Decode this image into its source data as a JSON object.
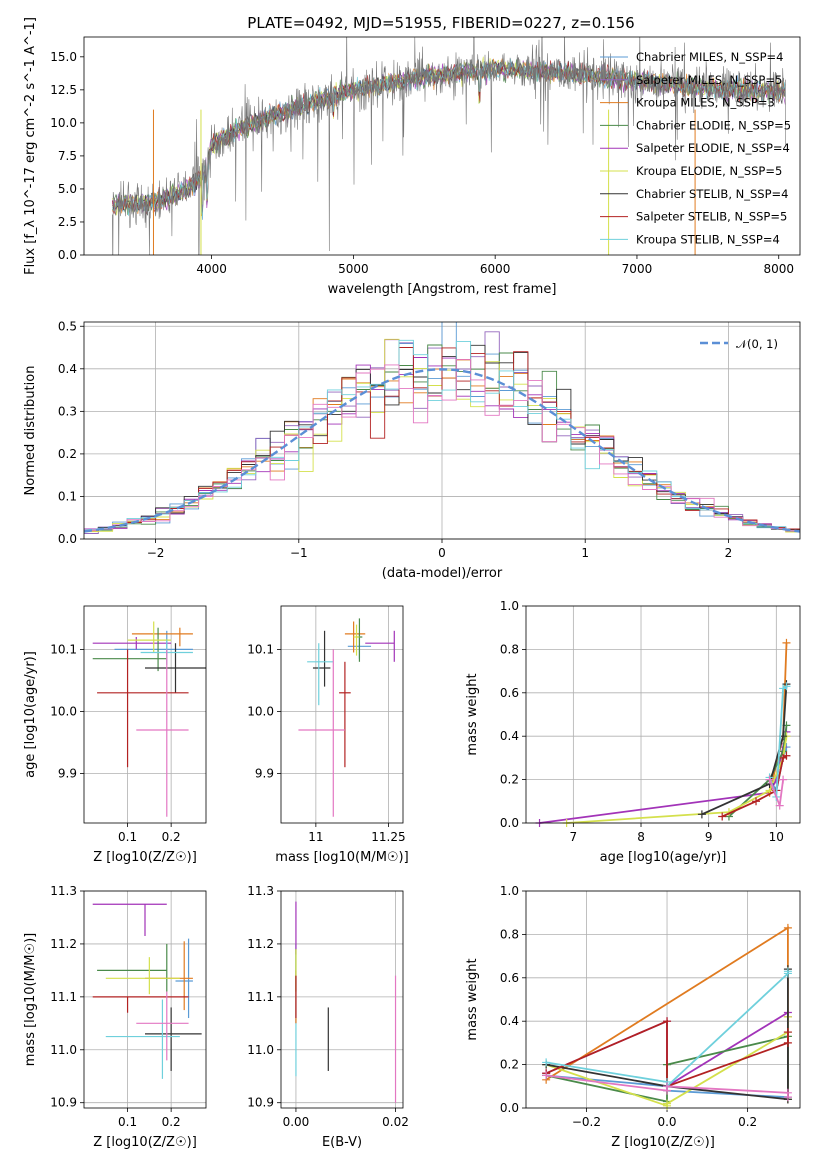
{
  "page_title": "PLATE=0492, MJD=51955, FIBERID=0227, z=0.156",
  "chart_data": [
    {
      "id": "spectrum",
      "type": "line",
      "xlabel": "wavelength [Angstrom, rest frame]",
      "ylabel": "Flux [f_λ 10^-17 erg cm^-2 s^-1 A^-1]",
      "xlim": [
        3100,
        8150
      ],
      "ylim": [
        0,
        16.5
      ],
      "xticks": [
        4000,
        5000,
        6000,
        7000,
        8000
      ],
      "yticks": [
        0.0,
        2.5,
        5.0,
        7.5,
        10.0,
        12.5,
        15.0
      ],
      "grid": false,
      "legend_position": "right",
      "data_color": "#777777",
      "continuum": [
        [
          3300,
          3.8
        ],
        [
          3550,
          3.9
        ],
        [
          3650,
          4.2
        ],
        [
          3800,
          4.8
        ],
        [
          3950,
          6.0
        ],
        [
          4000,
          8.3
        ],
        [
          4200,
          9.6
        ],
        [
          4500,
          10.8
        ],
        [
          4800,
          11.8
        ],
        [
          5000,
          12.5
        ],
        [
          5500,
          13.5
        ],
        [
          6000,
          14.1
        ],
        [
          6500,
          13.8
        ],
        [
          7000,
          13.2
        ],
        [
          7500,
          12.6
        ],
        [
          8000,
          12.4
        ],
        [
          8050,
          12.3
        ]
      ],
      "models": [
        {
          "name": "Chabrier MILES, N_SSP=4",
          "color": "#5b9bd5"
        },
        {
          "name": "Salpeter MILES, N_SSP=5",
          "color": "#9467bd"
        },
        {
          "name": "Kroupa MILES, N_SSP=3",
          "color": "#e07b20"
        },
        {
          "name": "Chabrier ELODIE, N_SSP=5",
          "color": "#4a8a4a"
        },
        {
          "name": "Salpeter ELODIE, N_SSP=4",
          "color": "#a233b8"
        },
        {
          "name": "Kroupa ELODIE, N_SSP=5",
          "color": "#d4e04c"
        },
        {
          "name": "Chabrier STELIB, N_SSP=4",
          "color": "#333333"
        },
        {
          "name": "Salpeter STELIB, N_SSP=5",
          "color": "#b22222"
        },
        {
          "name": "Kroupa STELIB, N_SSP=4",
          "color": "#6fd0dc"
        }
      ]
    },
    {
      "id": "residuals",
      "type": "line",
      "xlabel": "(data-model)/error",
      "ylabel": "Normed distribution",
      "xlim": [
        -2.5,
        2.5
      ],
      "ylim": [
        0,
        0.51
      ],
      "xticks": [
        -2,
        -1,
        0,
        1,
        2
      ],
      "yticks": [
        0.0,
        0.1,
        0.2,
        0.3,
        0.4,
        0.5
      ],
      "grid": true,
      "legend_position": "top-right",
      "reference": {
        "name": "𝒩(0, 1)",
        "color": "#5b8fd6",
        "mean": 0,
        "sigma": 1
      },
      "bin_width": 0.1,
      "histogram_colors": [
        "#5b9bd5",
        "#9467bd",
        "#e07b20",
        "#4a8a4a",
        "#a233b8",
        "#d4e04c",
        "#333333",
        "#b22222",
        "#6fd0dc",
        "#e377c2"
      ]
    },
    {
      "id": "age_vs_Z",
      "type": "scatter",
      "xlabel": "Z [log10(Z/Z☉)]",
      "ylabel": "age  [log10(age/yr)]",
      "xlim": [
        0.0,
        0.28
      ],
      "ylim": [
        9.82,
        10.17
      ],
      "xticks": [
        0.1,
        0.2
      ],
      "yticks": [
        9.9,
        10.0,
        10.1
      ],
      "grid": true,
      "points": [
        {
          "x": 0.19,
          "y": 10.1,
          "xerr": [
            0.12,
            0.06
          ],
          "yerr": [
            0.01,
            0.03
          ],
          "color": "#5b9bd5"
        },
        {
          "x": 0.12,
          "y": 10.11,
          "xerr": [
            0.1,
            0.08
          ],
          "yerr": [
            0.01,
            0.01
          ],
          "color": "#a233b8"
        },
        {
          "x": 0.22,
          "y": 10.125,
          "xerr": [
            0.11,
            0.03
          ],
          "yerr": [
            0.02,
            0.01
          ],
          "color": "#e07b20"
        },
        {
          "x": 0.17,
          "y": 10.085,
          "xerr": [
            0.15,
            0.02
          ],
          "yerr": [
            0.02,
            0.05
          ],
          "color": "#4a8a4a"
        },
        {
          "x": 0.16,
          "y": 10.115,
          "xerr": [
            0.06,
            0.04
          ],
          "yerr": [
            0.02,
            0.03
          ],
          "color": "#d4e04c"
        },
        {
          "x": 0.21,
          "y": 10.07,
          "xerr": [
            0.07,
            0.07
          ],
          "yerr": [
            0.04,
            0.04
          ],
          "color": "#333333"
        },
        {
          "x": 0.1,
          "y": 10.03,
          "xerr": [
            0.07,
            0.14
          ],
          "yerr": [
            0.12,
            0.07
          ],
          "color": "#b22222"
        },
        {
          "x": 0.19,
          "y": 10.095,
          "xerr": [
            0.06,
            0.06
          ],
          "yerr": [
            0.02,
            0.02
          ],
          "color": "#6fd0dc"
        },
        {
          "x": 0.19,
          "y": 9.97,
          "xerr": [
            0.07,
            0.05
          ],
          "yerr": [
            0.14,
            0.13
          ],
          "color": "#e377c2"
        }
      ]
    },
    {
      "id": "age_vs_mass",
      "type": "scatter",
      "xlabel": "mass [log10(M/M☉)]",
      "ylabel": "",
      "xlim": [
        10.88,
        11.3
      ],
      "ylim": [
        9.82,
        10.17
      ],
      "xticks": [
        11.0,
        11.25
      ],
      "yticks": [
        9.9,
        10.0,
        10.1
      ],
      "grid": true,
      "points": [
        {
          "x": 11.15,
          "y": 10.105,
          "xerr": [
            0.04,
            0.04
          ],
          "yerr": [
            0.02,
            0.02
          ],
          "color": "#5b9bd5"
        },
        {
          "x": 11.27,
          "y": 10.11,
          "xerr": [
            0.1,
            0.0
          ],
          "yerr": [
            0.03,
            0.02
          ],
          "color": "#a233b8"
        },
        {
          "x": 11.13,
          "y": 10.125,
          "xerr": [
            0.03,
            0.04
          ],
          "yerr": [
            0.03,
            0.02
          ],
          "color": "#e07b20"
        },
        {
          "x": 11.15,
          "y": 10.12,
          "xerr": [
            0.01,
            0.01
          ],
          "yerr": [
            0.04,
            0.03
          ],
          "color": "#4a8a4a"
        },
        {
          "x": 11.14,
          "y": 10.12,
          "xerr": [
            0.01,
            0.01
          ],
          "yerr": [
            0.03,
            0.02
          ],
          "color": "#d4e04c"
        },
        {
          "x": 11.03,
          "y": 10.07,
          "xerr": [
            0.04,
            0.02
          ],
          "yerr": [
            0.03,
            0.06
          ],
          "color": "#333333"
        },
        {
          "x": 11.1,
          "y": 10.03,
          "xerr": [
            0.02,
            0.02
          ],
          "yerr": [
            0.12,
            0.05
          ],
          "color": "#b22222"
        },
        {
          "x": 11.01,
          "y": 10.08,
          "xerr": [
            0.04,
            0.05
          ],
          "yerr": [
            0.07,
            0.03
          ],
          "color": "#6fd0dc"
        },
        {
          "x": 11.06,
          "y": 9.97,
          "xerr": [
            0.12,
            0.04
          ],
          "yerr": [
            0.14,
            0.13
          ],
          "color": "#e377c2"
        }
      ]
    },
    {
      "id": "weight_vs_age",
      "type": "line",
      "xlabel": "age  [log10(age/yr)]",
      "ylabel": "mass weight",
      "xlim": [
        6.3,
        10.35
      ],
      "ylim": [
        0,
        1.0
      ],
      "xticks": [
        7,
        8,
        9,
        10
      ],
      "yticks": [
        0.0,
        0.2,
        0.4,
        0.6,
        0.8,
        1.0
      ],
      "grid": true,
      "series": [
        {
          "color": "#5b9bd5",
          "x": [
            9.9,
            10.0,
            10.1,
            10.15
          ],
          "y": [
            0.2,
            0.15,
            0.3,
            0.35
          ]
        },
        {
          "color": "#a233b8",
          "x": [
            6.5,
            9.9,
            10.0,
            10.1,
            10.15
          ],
          "y": [
            0.0,
            0.14,
            0.2,
            0.35,
            0.42
          ]
        },
        {
          "color": "#e07b20",
          "x": [
            9.9,
            10.1,
            10.15
          ],
          "y": [
            0.14,
            0.4,
            0.83
          ]
        },
        {
          "color": "#4a8a4a",
          "x": [
            9.3,
            9.9,
            10.1,
            10.15
          ],
          "y": [
            0.03,
            0.2,
            0.33,
            0.45
          ]
        },
        {
          "color": "#d4e04c",
          "x": [
            6.9,
            9.3,
            9.9,
            10.1,
            10.15
          ],
          "y": [
            0.0,
            0.05,
            0.15,
            0.3,
            0.4
          ]
        },
        {
          "color": "#333333",
          "x": [
            8.9,
            9.9,
            10.1,
            10.15
          ],
          "y": [
            0.04,
            0.18,
            0.4,
            0.64
          ]
        },
        {
          "color": "#b22222",
          "x": [
            9.2,
            9.7,
            10.0,
            10.1,
            10.15
          ],
          "y": [
            0.03,
            0.1,
            0.15,
            0.3,
            0.31
          ]
        },
        {
          "color": "#6fd0dc",
          "x": [
            9.9,
            10.0,
            10.1,
            10.15
          ],
          "y": [
            0.21,
            0.12,
            0.62,
            0.63
          ]
        },
        {
          "color": "#e377c2",
          "x": [
            9.9,
            10.05,
            10.1
          ],
          "y": [
            0.2,
            0.08,
            0.2
          ]
        }
      ]
    },
    {
      "id": "mass_vs_Z",
      "type": "scatter",
      "xlabel": "Z [log10(Z/Z☉)]",
      "ylabel": "mass [log10(M/M☉)]",
      "xlim": [
        0.0,
        0.28
      ],
      "ylim": [
        10.89,
        11.3
      ],
      "xticks": [
        0.1,
        0.2
      ],
      "yticks": [
        10.9,
        11.0,
        11.1,
        11.2,
        11.3
      ],
      "grid": true,
      "points": [
        {
          "x": 0.24,
          "y": 11.13,
          "xerr": [
            0.03,
            0.01
          ],
          "yerr": [
            0.07,
            0.08
          ],
          "color": "#5b9bd5"
        },
        {
          "x": 0.14,
          "y": 11.275,
          "xerr": [
            0.12,
            0.05
          ],
          "yerr": [
            0.06,
            0.0
          ],
          "color": "#a233b8"
        },
        {
          "x": 0.23,
          "y": 11.135,
          "xerr": [
            0.09,
            0.02
          ],
          "yerr": [
            0.06,
            0.07
          ],
          "color": "#e07b20"
        },
        {
          "x": 0.19,
          "y": 11.15,
          "xerr": [
            0.16,
            0.0
          ],
          "yerr": [
            0.04,
            0.05
          ],
          "color": "#4a8a4a"
        },
        {
          "x": 0.15,
          "y": 11.135,
          "xerr": [
            0.1,
            0.07
          ],
          "yerr": [
            0.03,
            0.04
          ],
          "color": "#d4e04c"
        },
        {
          "x": 0.2,
          "y": 11.03,
          "xerr": [
            0.06,
            0.07
          ],
          "yerr": [
            0.07,
            0.05
          ],
          "color": "#333333"
        },
        {
          "x": 0.1,
          "y": 11.1,
          "xerr": [
            0.08,
            0.14
          ],
          "yerr": [
            0.03,
            0.0
          ],
          "color": "#b22222"
        },
        {
          "x": 0.18,
          "y": 11.025,
          "xerr": [
            0.13,
            0.04
          ],
          "yerr": [
            0.08,
            0.07
          ],
          "color": "#6fd0dc"
        },
        {
          "x": 0.19,
          "y": 11.05,
          "xerr": [
            0.07,
            0.05
          ],
          "yerr": [
            0.07,
            0.06
          ],
          "color": "#e377c2"
        }
      ]
    },
    {
      "id": "mass_vs_EBV",
      "type": "scatter",
      "xlabel": "E(B-V)",
      "ylabel": "",
      "xlim": [
        -0.003,
        0.0215
      ],
      "ylim": [
        10.89,
        11.3
      ],
      "xticks": [
        0.0,
        0.02
      ],
      "xtick_labels": [
        "0.00",
        "0.02"
      ],
      "yticks": [
        10.9,
        11.0,
        11.1,
        11.2,
        11.3
      ],
      "grid": true,
      "points": [
        {
          "x": 0.0,
          "y": 11.13,
          "yerr": [
            0.08,
            0.07
          ],
          "color": "#5b9bd5"
        },
        {
          "x": 0.0,
          "y": 11.23,
          "yerr": [
            0.05,
            0.05
          ],
          "color": "#a233b8"
        },
        {
          "x": 0.0,
          "y": 11.1,
          "yerr": [
            0.05,
            0.05
          ],
          "color": "#e07b20"
        },
        {
          "x": 0.0,
          "y": 11.15,
          "yerr": [
            0.04,
            0.04
          ],
          "color": "#4a8a4a"
        },
        {
          "x": 0.0,
          "y": 11.15,
          "yerr": [
            0.04,
            0.04
          ],
          "color": "#d4e04c"
        },
        {
          "x": 0.0065,
          "y": 11.02,
          "yerr": [
            0.06,
            0.06
          ],
          "color": "#333333"
        },
        {
          "x": 0.0,
          "y": 11.1,
          "yerr": [
            0.04,
            0.04
          ],
          "color": "#b22222"
        },
        {
          "x": 0.0,
          "y": 11.0,
          "yerr": [
            0.05,
            0.05
          ],
          "color": "#6fd0dc"
        },
        {
          "x": 0.02,
          "y": 11.02,
          "yerr": [
            0.12,
            0.12
          ],
          "color": "#e377c2"
        }
      ]
    },
    {
      "id": "weight_vs_Z",
      "type": "line",
      "xlabel": "Z [log10(Z/Z☉)]",
      "ylabel": "mass weight",
      "xlim": [
        -0.35,
        0.33
      ],
      "ylim": [
        0,
        1.0
      ],
      "xticks": [
        -0.2,
        0.0,
        0.2
      ],
      "xtick_labels": [
        "−0.2",
        "0.0",
        "0.2"
      ],
      "yticks": [
        0.0,
        0.2,
        0.4,
        0.6,
        0.8,
        1.0
      ],
      "grid": true,
      "series": [
        {
          "color": "#5b9bd5",
          "x": [
            -0.3,
            0.0,
            0.0,
            0.3,
            0.3
          ],
          "y": [
            0.15,
            0.1,
            0.08,
            0.05,
            0.35
          ]
        },
        {
          "color": "#a233b8",
          "x": [
            -0.3,
            0.0,
            0.0,
            0.3,
            0.3
          ],
          "y": [
            0.16,
            0.4,
            0.1,
            0.44,
            0.42
          ]
        },
        {
          "color": "#e07b20",
          "x": [
            -0.3,
            0.3,
            0.3
          ],
          "y": [
            0.13,
            0.83,
            0.04
          ]
        },
        {
          "color": "#4a8a4a",
          "x": [
            -0.3,
            0.0,
            0.0,
            0.3,
            0.3
          ],
          "y": [
            0.15,
            0.03,
            0.2,
            0.33,
            0.04
          ]
        },
        {
          "color": "#d4e04c",
          "x": [
            -0.3,
            0.0,
            0.0,
            0.3,
            0.3
          ],
          "y": [
            0.2,
            0.01,
            0.02,
            0.35,
            0.42
          ]
        },
        {
          "color": "#333333",
          "x": [
            -0.3,
            0.0,
            0.0,
            0.3,
            0.3
          ],
          "y": [
            0.2,
            0.1,
            0.1,
            0.04,
            0.64
          ]
        },
        {
          "color": "#b22222",
          "x": [
            -0.3,
            0.0,
            0.0,
            0.3,
            0.3
          ],
          "y": [
            0.16,
            0.4,
            0.1,
            0.3,
            0.35
          ]
        },
        {
          "color": "#6fd0dc",
          "x": [
            -0.3,
            0.0,
            0.0,
            0.3,
            0.3
          ],
          "y": [
            0.21,
            0.12,
            0.1,
            0.62,
            0.63
          ]
        },
        {
          "color": "#e377c2",
          "x": [
            -0.3,
            0.0,
            0.0,
            0.3,
            0.3
          ],
          "y": [
            0.15,
            0.08,
            0.1,
            0.07,
            0.05
          ]
        }
      ]
    }
  ]
}
